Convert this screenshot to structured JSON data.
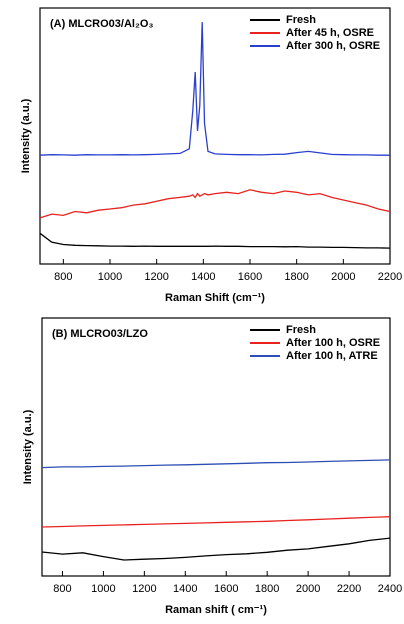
{
  "chart_data": [
    {
      "type": "line",
      "title": "(A) MLCRO03/Al₂O₃",
      "x_label": "Raman Shift (cm⁻¹)",
      "y_label": "Intensity (a.u.)",
      "x": [
        700,
        750,
        800,
        850,
        900,
        950,
        1000,
        1050,
        1100,
        1150,
        1200,
        1250,
        1300,
        1340,
        1355,
        1365,
        1375,
        1385,
        1395,
        1405,
        1420,
        1450,
        1500,
        1550,
        1600,
        1650,
        1700,
        1750,
        1800,
        1850,
        1900,
        1950,
        2000,
        2050,
        2100,
        2150,
        2200
      ],
      "series": [
        {
          "name": "Fresh",
          "color": "#000000",
          "values": [
            12,
            8.5,
            7.6,
            7.3,
            7.2,
            7.1,
            7.0,
            7.0,
            6.9,
            7.0,
            6.9,
            6.9,
            6.9,
            6.9,
            6.9,
            6.9,
            6.9,
            6.9,
            6.9,
            6.9,
            6.9,
            7.0,
            6.9,
            6.9,
            6.8,
            6.8,
            6.8,
            6.7,
            6.8,
            6.6,
            6.6,
            6.5,
            6.5,
            6.4,
            6.3,
            6.3,
            6.2
          ]
        },
        {
          "name": "After 45 h, OSRE",
          "color": "#e8231f",
          "values": [
            18,
            19.5,
            19,
            20.5,
            20,
            21,
            21.5,
            22,
            23,
            23.5,
            24.5,
            25.5,
            26,
            26.5,
            27,
            26,
            27.5,
            26.5,
            27,
            27.5,
            27,
            27.5,
            28,
            27.5,
            29,
            28,
            27.5,
            28.5,
            28,
            27,
            27.5,
            26,
            25,
            24,
            23,
            21.5,
            20.5
          ]
        },
        {
          "name": "After 300 h, OSRE",
          "color": "#2a3fd0",
          "values": [
            42.5,
            42.7,
            42.6,
            42.5,
            42.7,
            42.6,
            42.6,
            42.7,
            42.6,
            42.7,
            42.8,
            43,
            43.2,
            45,
            60,
            75,
            52,
            62,
            94.5,
            55,
            44,
            43,
            42.8,
            42.7,
            42.7,
            42.6,
            42.8,
            42.9,
            43.5,
            44,
            43.4,
            42.8,
            42.7,
            42.6,
            42.6,
            42.5,
            42.5
          ]
        }
      ],
      "xlim": [
        700,
        2200
      ],
      "xticks": [
        800,
        1000,
        1200,
        1400,
        1600,
        1800,
        2000,
        2200
      ],
      "ylim": [
        0,
        100
      ],
      "legend": "upper right"
    },
    {
      "type": "line",
      "title": "(B) MLCRO03/LZO",
      "x_label": "Raman shift ( cm⁻¹)",
      "y_label": "Intensity (a.u.)",
      "x": [
        700,
        800,
        900,
        1000,
        1100,
        1200,
        1300,
        1400,
        1500,
        1600,
        1700,
        1800,
        1900,
        2000,
        2100,
        2200,
        2300,
        2400
      ],
      "series": [
        {
          "name": "Fresh",
          "color": "#000000",
          "values": [
            9.3,
            8.5,
            9,
            7.5,
            6.2,
            6.5,
            6.8,
            7.2,
            7.8,
            8.3,
            8.6,
            9.2,
            10,
            10.5,
            11.5,
            12.5,
            13.8,
            14.7
          ]
        },
        {
          "name": "After 100 h, OSRE",
          "color": "#e8231f",
          "values": [
            19,
            19.2,
            19.4,
            19.6,
            19.8,
            20,
            20.2,
            20.4,
            20.6,
            20.8,
            21,
            21.2,
            21.5,
            21.8,
            22.1,
            22.4,
            22.7,
            23
          ]
        },
        {
          "name": "After 100 h, ATRE",
          "color": "#2d4fb5",
          "values": [
            42,
            42.3,
            42.3,
            42.5,
            42.6,
            42.8,
            43,
            43.1,
            43.3,
            43.5,
            43.7,
            43.9,
            44,
            44.2,
            44.4,
            44.6,
            44.8,
            45
          ]
        }
      ],
      "xlim": [
        700,
        2400
      ],
      "xticks": [
        800,
        1000,
        1200,
        1400,
        1600,
        1800,
        2000,
        2200,
        2400
      ],
      "ylim": [
        0,
        100
      ],
      "legend": "upper right"
    }
  ]
}
